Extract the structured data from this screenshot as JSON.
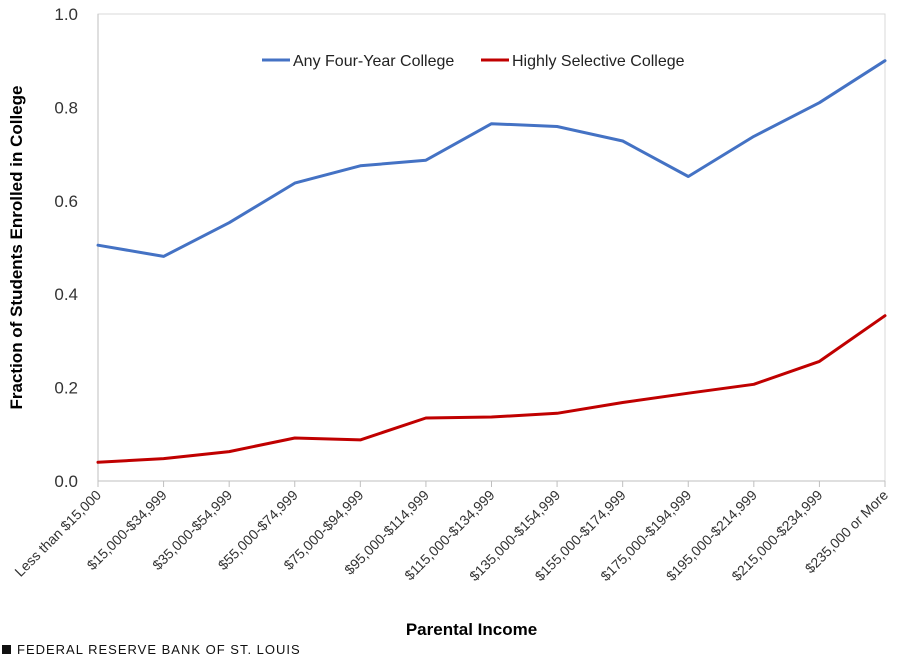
{
  "footer": {
    "source": "FEDERAL RESERVE BANK OF ST. LOUIS",
    "icon": "square-bullet-icon"
  },
  "chart_data": {
    "type": "line",
    "title": "",
    "xlabel": "Parental Income",
    "ylabel": "Fraction of Students Enrolled in College",
    "ylim": [
      0,
      1.0
    ],
    "yticks": [
      "0.0",
      "0.2",
      "0.4",
      "0.6",
      "0.8",
      "1.0"
    ],
    "grid": false,
    "legend_position": "top-center",
    "categories": [
      "Less than $15,000",
      "$15,000-$34,999",
      "$35,000-$54,999",
      "$55,000-$74,999",
      "$75,000-$94,999",
      "$95,000-$114,999",
      "$115,000-$134,999",
      "$135,000-$154,999",
      "$155,000-$174,999",
      "$175,000-$194,999",
      "$195,000-$214,999",
      "$215,000-$234,999",
      "$235,000 or More"
    ],
    "series": [
      {
        "name": "Any Four-Year College",
        "color": "#4472c4",
        "values": [
          0.505,
          0.481,
          0.553,
          0.638,
          0.675,
          0.687,
          0.765,
          0.759,
          0.728,
          0.652,
          0.738,
          0.81,
          0.9
        ]
      },
      {
        "name": "Highly Selective College",
        "color": "#c00000",
        "values": [
          0.04,
          0.048,
          0.063,
          0.092,
          0.088,
          0.135,
          0.137,
          0.145,
          0.168,
          0.188,
          0.207,
          0.256,
          0.354
        ]
      }
    ]
  }
}
